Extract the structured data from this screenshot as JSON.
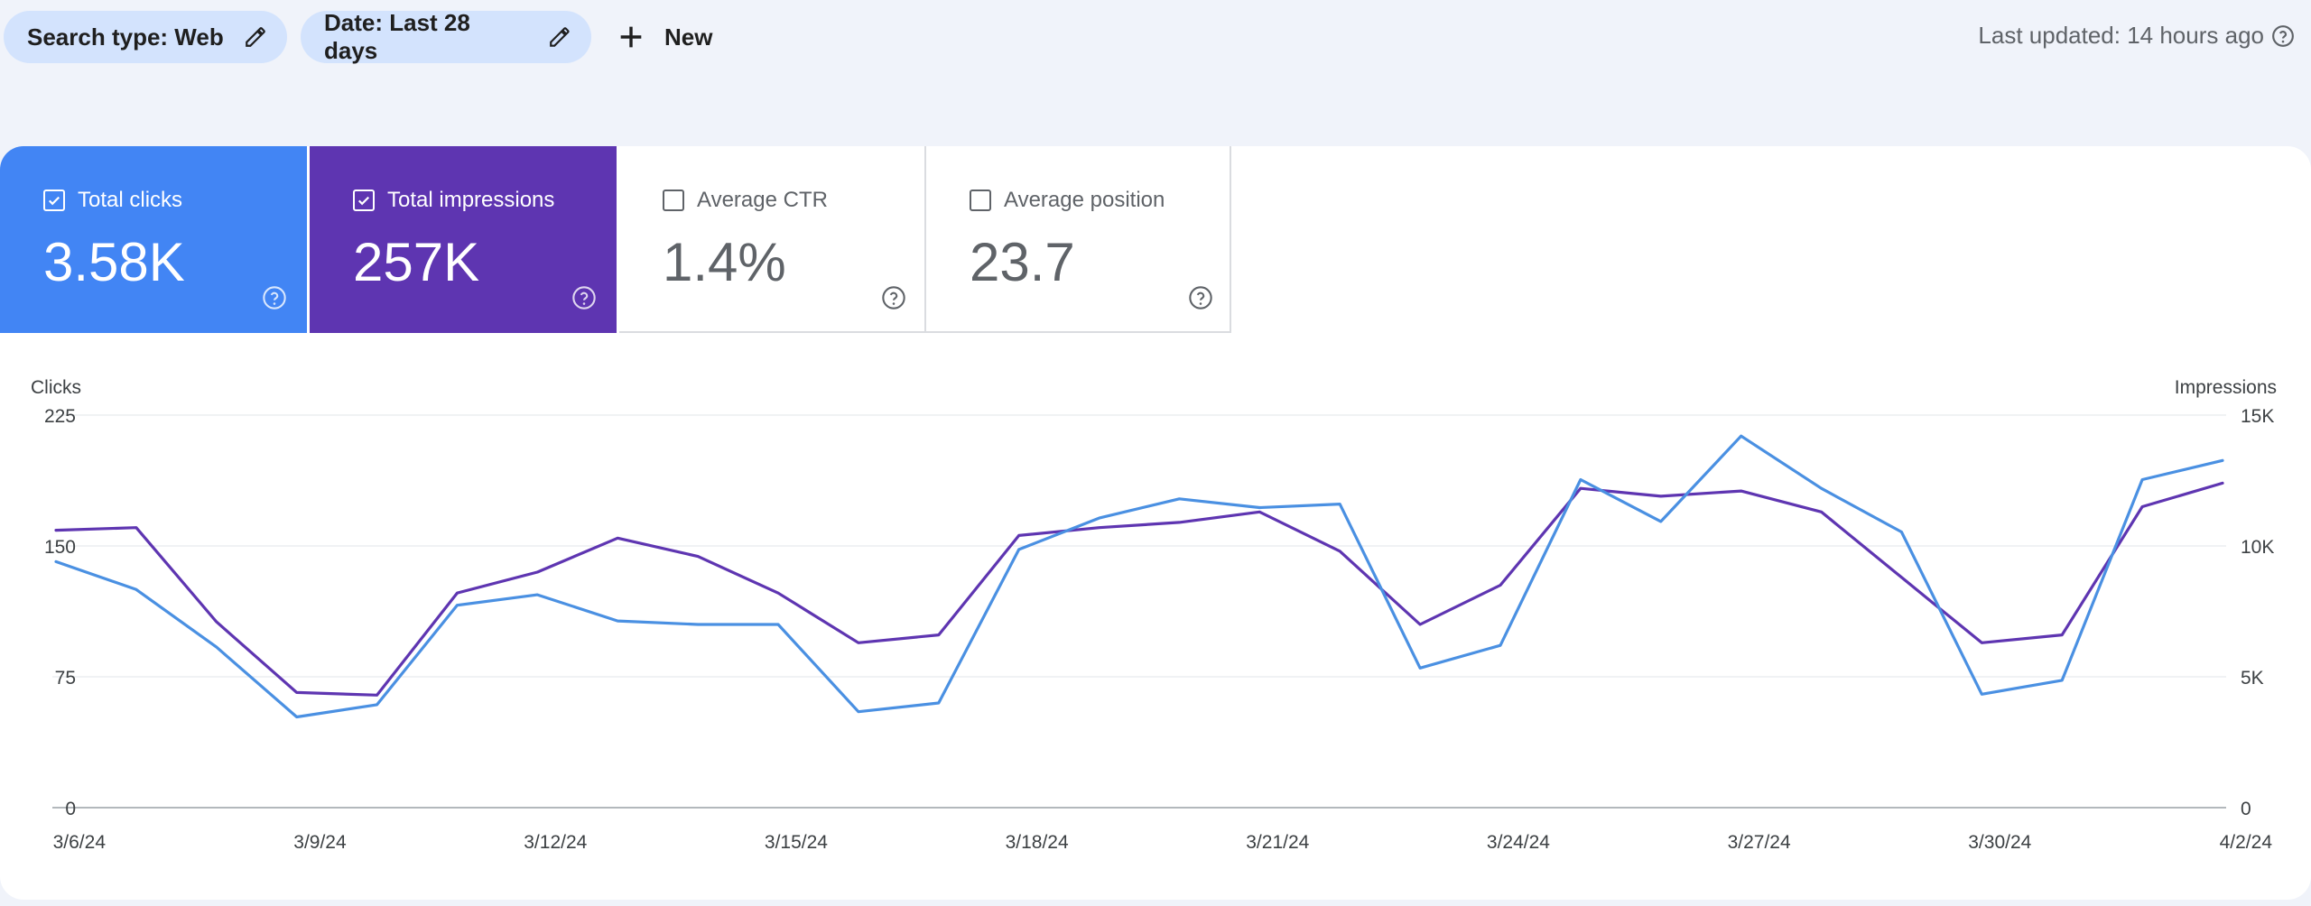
{
  "filters": {
    "search_type": "Search type: Web",
    "date": "Date: Last 28 days",
    "new_label": "New"
  },
  "last_updated": "Last updated: 14 hours ago",
  "metrics": [
    {
      "label": "Total clicks",
      "value": "3.58K",
      "checked": true,
      "color": "#4285f4"
    },
    {
      "label": "Total impressions",
      "value": "257K",
      "checked": true,
      "color": "#5e35b1"
    },
    {
      "label": "Average CTR",
      "value": "1.4%",
      "checked": false
    },
    {
      "label": "Average position",
      "value": "23.7",
      "checked": false
    }
  ],
  "chart_data": {
    "type": "line",
    "x": [
      "3/6/24",
      "3/7/24",
      "3/8/24",
      "3/9/24",
      "3/10/24",
      "3/11/24",
      "3/12/24",
      "3/13/24",
      "3/14/24",
      "3/15/24",
      "3/16/24",
      "3/17/24",
      "3/18/24",
      "3/19/24",
      "3/20/24",
      "3/21/24",
      "3/22/24",
      "3/23/24",
      "3/24/24",
      "3/25/24",
      "3/26/24",
      "3/27/24",
      "3/28/24",
      "3/29/24",
      "3/30/24",
      "3/31/24",
      "4/1/24",
      "4/2/24"
    ],
    "x_tick_labels": [
      "3/6/24",
      "3/9/24",
      "3/12/24",
      "3/15/24",
      "3/18/24",
      "3/21/24",
      "3/24/24",
      "3/27/24",
      "3/30/24",
      "4/2/24"
    ],
    "y_left_label": "Clicks",
    "y_right_label": "Impressions",
    "y_left_ticks": [
      "0",
      "75",
      "150",
      "225"
    ],
    "y_right_ticks": [
      "0",
      "5K",
      "10K",
      "15K"
    ],
    "y_left_lim": [
      0,
      225
    ],
    "y_right_lim": [
      0,
      15000
    ],
    "series": [
      {
        "name": "Total clicks",
        "axis": "left",
        "color": "#4a90e2",
        "values": [
          141,
          125,
          92,
          52,
          59,
          116,
          122,
          107,
          105,
          105,
          55,
          60,
          148,
          166,
          177,
          172,
          174,
          80,
          93,
          188,
          164,
          213,
          183,
          158,
          65,
          73,
          188,
          199
        ]
      },
      {
        "name": "Total impressions",
        "axis": "right",
        "color": "#5e35b1",
        "values": [
          10600,
          10700,
          7100,
          4400,
          4300,
          8200,
          9000,
          10300,
          9600,
          8200,
          6300,
          6600,
          10400,
          10700,
          10900,
          11300,
          9800,
          7000,
          8500,
          12200,
          11900,
          12100,
          11300,
          8800,
          6300,
          6600,
          11500,
          12400
        ]
      }
    ],
    "grid": true
  }
}
